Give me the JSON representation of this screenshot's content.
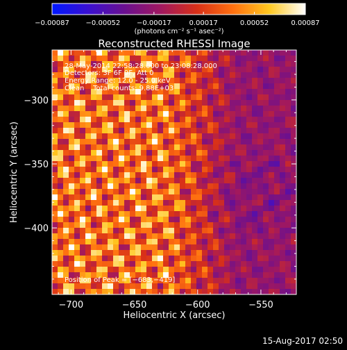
{
  "chart_data": {
    "type": "heatmap",
    "title": "Reconstructed RHESSI Image",
    "xlabel": "Heliocentric X (arcsec)",
    "ylabel": "Heliocentric Y (arcsec)",
    "xlim": [
      -715,
      -522
    ],
    "ylim": [
      -452,
      -261
    ],
    "x_ticks": [
      -700,
      -650,
      -600,
      -550
    ],
    "y_ticks": [
      -300,
      -350,
      -400
    ],
    "x_tick_labels": [
      "−700",
      "−650",
      "−600",
      "−550"
    ],
    "y_tick_labels": [
      "−300",
      "−350",
      "−400"
    ],
    "colorbar": {
      "min": -0.00087,
      "max": 0.00087,
      "ticks": [
        -0.00087,
        -0.00052,
        -0.00017,
        0.00017,
        0.00052,
        0.00087
      ],
      "tick_labels": [
        "−0.00087",
        "−0.00052",
        "−0.00017",
        "0.00017",
        "0.00052",
        "0.00087"
      ],
      "unit_label": "(photons cm⁻² s⁻¹ asec⁻²)",
      "colors": [
        "#0018ff",
        "#3a10d0",
        "#6a1090",
        "#a01860",
        "#d83018",
        "#ff7010",
        "#ffc820",
        "#ffffff"
      ]
    },
    "grid": false,
    "peak_position": [
      -683,
      -419
    ]
  },
  "annotations": [
    "28-May-2014 22:58:28.000 to 23:08:28.000",
    "Detectors: 3F 6F 9F, Att 0",
    "Energy Range: 12.0 - 25.0 keV",
    "Clean    Total counts: 9.88E+03"
  ],
  "peak_label": "Position of Peak = [−683,−419]",
  "footer_timestamp": "15-Aug-2017 02:50"
}
